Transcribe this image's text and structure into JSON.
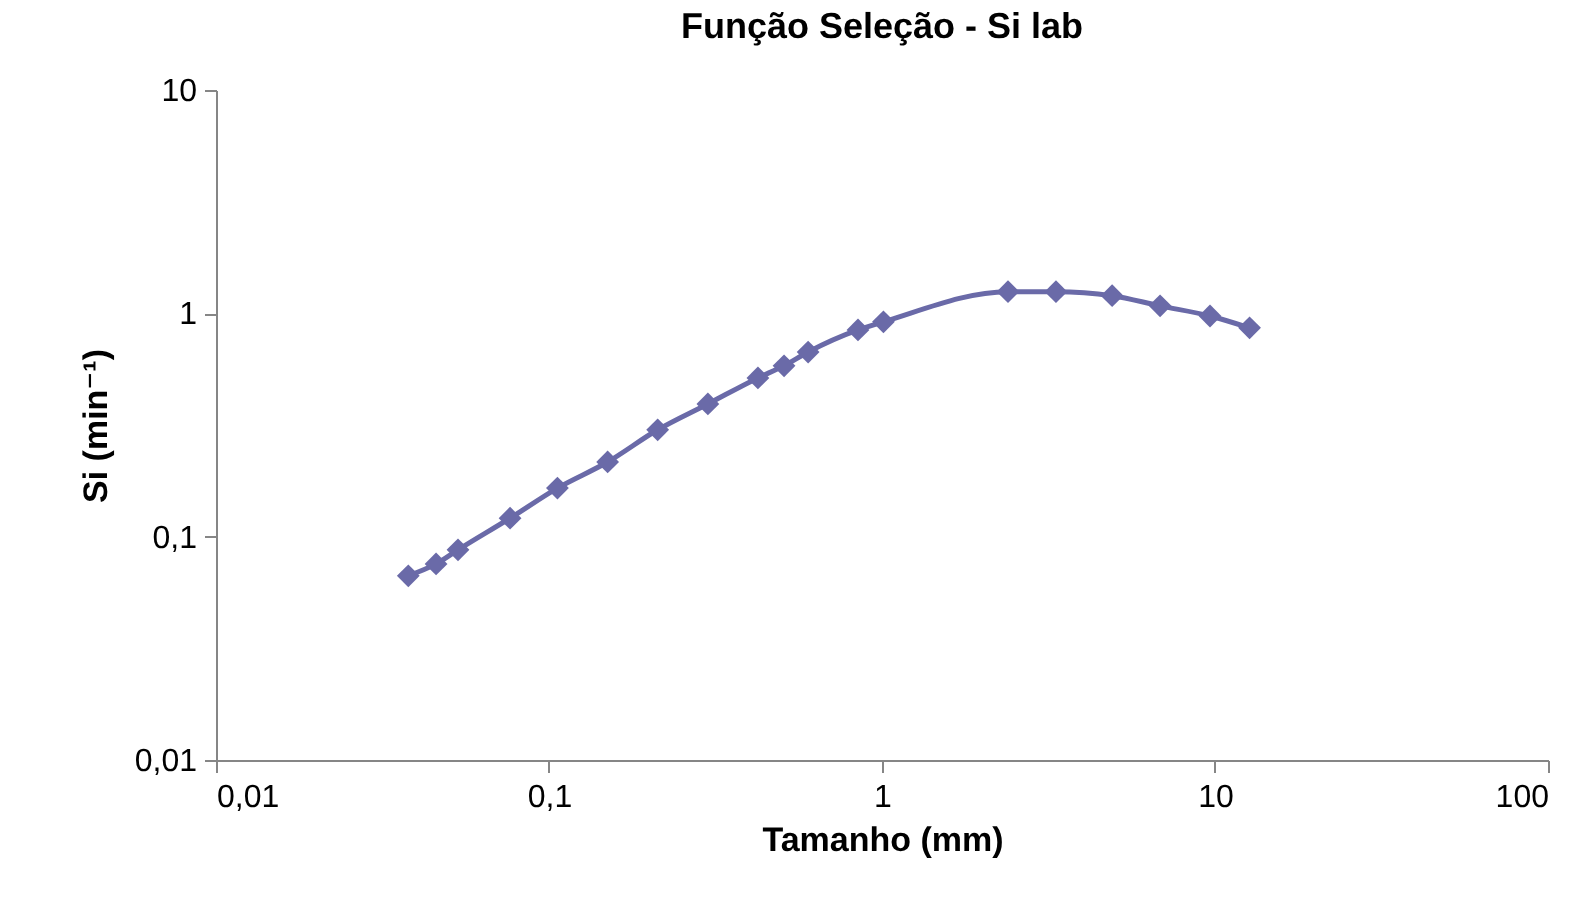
{
  "chart_data": {
    "type": "line",
    "title": "Função Seleção - Si lab",
    "xlabel": "Tamanho (mm)",
    "ylabel": "Si (min⁻¹)",
    "log": "xy",
    "grid": false,
    "legend": false,
    "marker": "diamond",
    "line_style": "solid",
    "xlim": [
      0.01,
      100
    ],
    "ylim": [
      0.01,
      10
    ],
    "xticks": [
      {
        "value": 0.01,
        "label": "0,01"
      },
      {
        "value": 0.1,
        "label": "0,1"
      },
      1,
      10,
      100
    ],
    "yticks": [
      {
        "value": 0.01,
        "label": "0,01"
      },
      {
        "value": 0.1,
        "label": "0,1"
      },
      1,
      10
    ],
    "series": [
      {
        "color": "#6a6aa8",
        "x": [
          0.0378,
          0.0458,
          0.0533,
          0.0764,
          0.106,
          0.15,
          0.212,
          0.3,
          0.424,
          0.508,
          0.6,
          0.847,
          1.01,
          2.39,
          3.33,
          4.91,
          6.84,
          9.66,
          12.7
        ],
        "values": [
          0.0668,
          0.0755,
          0.0873,
          0.121,
          0.165,
          0.216,
          0.301,
          0.393,
          0.514,
          0.582,
          0.671,
          0.843,
          0.916,
          1.25,
          1.25,
          1.2,
          1.08,
          0.973,
          0.861
        ]
      }
    ]
  }
}
